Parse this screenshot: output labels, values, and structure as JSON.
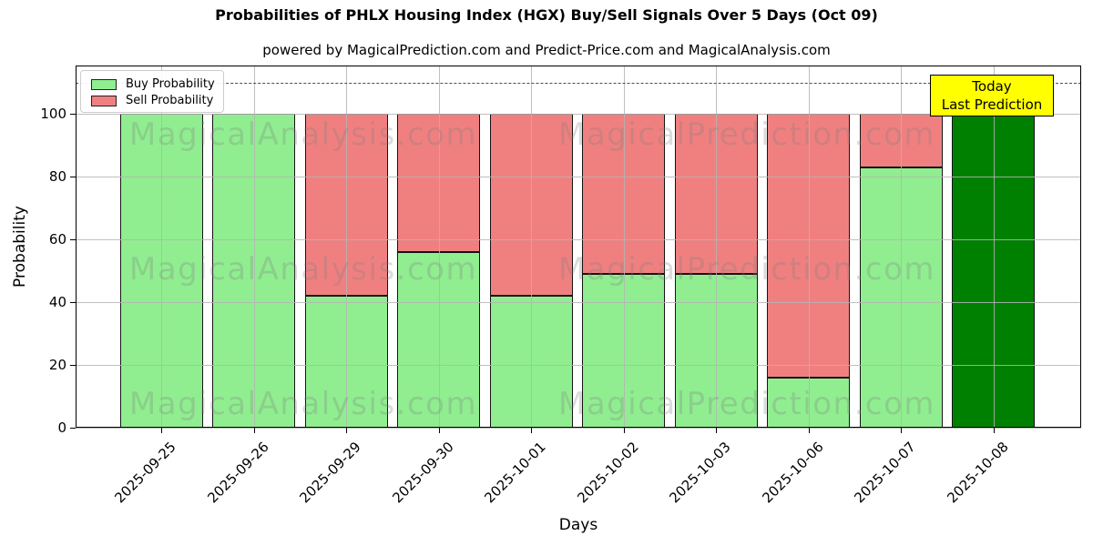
{
  "title": "Probabilities of PHLX Housing Index (HGX) Buy/Sell Signals Over 5 Days (Oct 09)",
  "subtitle": "powered by MagicalPrediction.com and Predict-Price.com and MagicalAnalysis.com",
  "legend": {
    "position": "upper left",
    "items": [
      {
        "label": "Buy Probability",
        "color": "#90EE90"
      },
      {
        "label": "Sell Probability",
        "color": "#F08080"
      }
    ]
  },
  "annotation": {
    "lines": [
      "Today",
      "Last Prediction"
    ],
    "bg_color": "#FFFF00",
    "position": "top right, above last bar"
  },
  "watermarks": {
    "texts": [
      "MagicalAnalysis.com",
      "MagicalPrediction.com"
    ],
    "color": "#7f7f7f"
  },
  "colors": {
    "buy": "#90EE90",
    "sell": "#F08080",
    "today_bar": "#008000",
    "grid": "#b4b4b4",
    "dashed_line": "#4d4d4d",
    "bar_edge": "#141414"
  },
  "chart_data": {
    "type": "bar",
    "stacked": true,
    "title": "Probabilities of PHLX Housing Index (HGX) Buy/Sell Signals Over 5 Days (Oct 09)",
    "xlabel": "Days",
    "ylabel": "Probability",
    "categories": [
      "2025-09-25",
      "2025-09-26",
      "2025-09-29",
      "2025-09-30",
      "2025-10-01",
      "2025-10-02",
      "2025-10-03",
      "2025-10-06",
      "2025-10-07",
      "2025-10-08"
    ],
    "series": [
      {
        "name": "Buy Probability",
        "color": "#90EE90",
        "values": [
          100,
          100,
          42,
          56,
          42,
          49,
          49,
          16,
          83,
          100
        ]
      },
      {
        "name": "Sell Probability",
        "color": "#F08080",
        "values": [
          0,
          0,
          58,
          44,
          58,
          51,
          51,
          84,
          17,
          0
        ]
      }
    ],
    "today_bar": {
      "category": "2025-10-08",
      "index": 9,
      "value": 100,
      "color": "#008000",
      "note": "rendered dark green as last prediction"
    },
    "ylim": [
      0,
      115.5
    ],
    "yticks": [
      0,
      20,
      40,
      60,
      80,
      100
    ],
    "dashed_line_y": 110,
    "grid": true,
    "legend_position": "upper left"
  }
}
